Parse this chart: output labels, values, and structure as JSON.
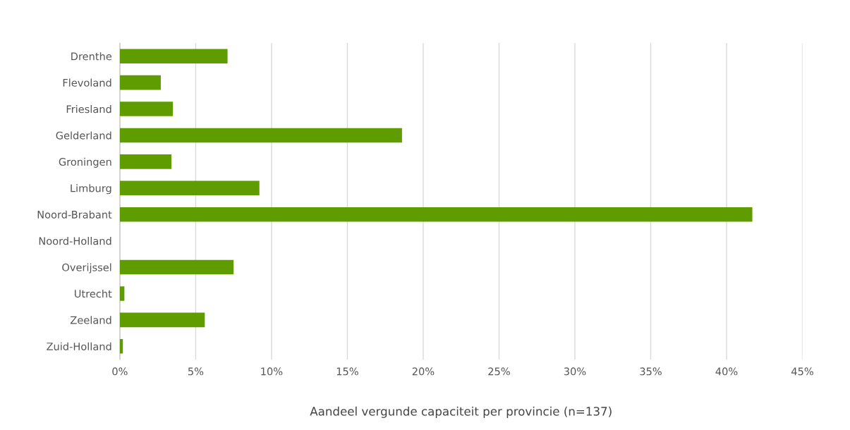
{
  "chart_data": {
    "type": "bar",
    "orientation": "horizontal",
    "xlabel": "Aandeel vergunde capaciteit per provincie (n=137)",
    "categories": [
      "Drenthe",
      "Flevoland",
      "Friesland",
      "Gelderland",
      "Groningen",
      "Limburg",
      "Noord-Brabant",
      "Noord-Holland",
      "Overijssel",
      "Utrecht",
      "Zeeland",
      "Zuid-Holland"
    ],
    "values": [
      7.1,
      2.7,
      3.5,
      18.6,
      3.4,
      9.2,
      41.7,
      0,
      7.5,
      0.3,
      5.6,
      0.2
    ],
    "color": "#5f9c00",
    "xlim": [
      0,
      45
    ],
    "xticks": [
      {
        "value": 0,
        "label": "0%"
      },
      {
        "value": 5,
        "label": "5%"
      },
      {
        "value": 10,
        "label": "10%"
      },
      {
        "value": 15,
        "label": "15%"
      },
      {
        "value": 20,
        "label": "20%"
      },
      {
        "value": 25,
        "label": "25%"
      },
      {
        "value": 30,
        "label": "30%"
      },
      {
        "value": 35,
        "label": "35%"
      },
      {
        "value": 40,
        "label": "40%"
      },
      {
        "value": 45,
        "label": "45%"
      }
    ],
    "grid": "x",
    "legend": false
  }
}
